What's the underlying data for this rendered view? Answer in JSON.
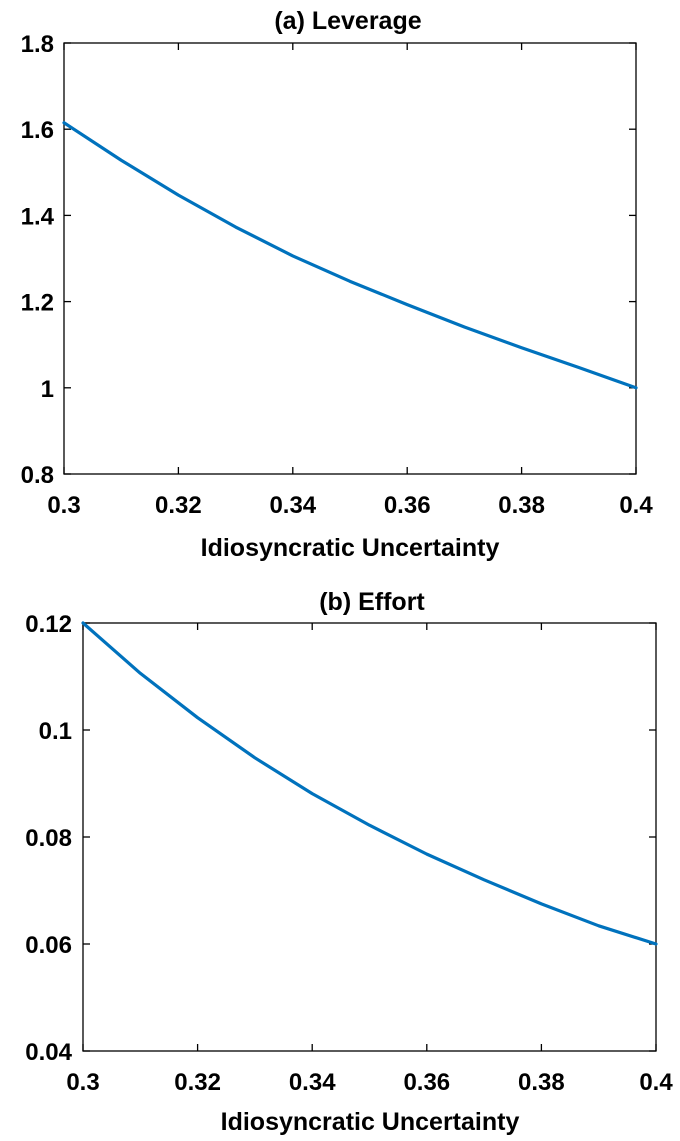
{
  "chart_data": [
    {
      "type": "line",
      "title": "(a) Leverage",
      "xlabel": "Idiosyncratic Uncertainty",
      "ylabel": "",
      "xlim": [
        0.3,
        0.4
      ],
      "ylim": [
        0.8,
        1.8
      ],
      "x_ticks": [
        "0.3",
        "0.32",
        "0.34",
        "0.36",
        "0.38",
        "0.4"
      ],
      "y_ticks": [
        "0.8",
        "1",
        "1.2",
        "1.4",
        "1.6",
        "1.8"
      ],
      "grid": false,
      "x": [
        0.3,
        0.31,
        0.32,
        0.33,
        0.34,
        0.35,
        0.36,
        0.37,
        0.38,
        0.39,
        0.4
      ],
      "series": [
        {
          "color": "#0072BD",
          "values": [
            1.615,
            1.528,
            1.447,
            1.373,
            1.306,
            1.247,
            1.193,
            1.141,
            1.093,
            1.047,
            1.0
          ]
        }
      ]
    },
    {
      "type": "line",
      "title": "(b) Effort",
      "xlabel": "Idiosyncratic Uncertainty",
      "ylabel": "",
      "xlim": [
        0.3,
        0.4
      ],
      "ylim": [
        0.04,
        0.12
      ],
      "x_ticks": [
        "0.3",
        "0.32",
        "0.34",
        "0.36",
        "0.38",
        "0.4"
      ],
      "y_ticks": [
        "0.04",
        "0.06",
        "0.08",
        "0.1",
        "0.12"
      ],
      "grid": false,
      "x": [
        0.3,
        0.31,
        0.32,
        0.33,
        0.34,
        0.35,
        0.36,
        0.37,
        0.38,
        0.39,
        0.4
      ],
      "series": [
        {
          "color": "#0072BD",
          "values": [
            0.12,
            0.1106,
            0.1023,
            0.0948,
            0.0881,
            0.0822,
            0.0768,
            0.072,
            0.0675,
            0.0634,
            0.06
          ]
        }
      ]
    }
  ]
}
